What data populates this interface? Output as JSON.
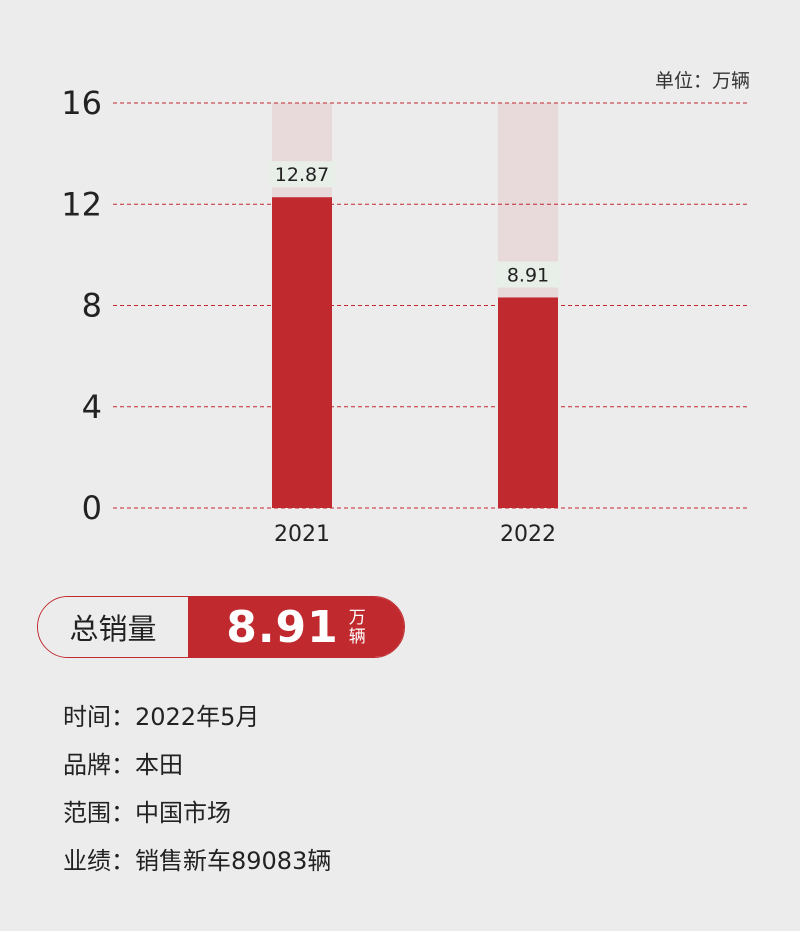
{
  "chart_data": {
    "type": "bar",
    "categories": [
      "2021",
      "2022"
    ],
    "values": [
      12.87,
      8.91
    ],
    "value_labels": [
      "12.87",
      "8.91"
    ],
    "yticks": [
      0,
      4,
      8,
      12,
      16
    ],
    "ylim": [
      0,
      16
    ],
    "unit_label": "单位：万辆",
    "grid": true,
    "colors": {
      "bar": "#c0292e",
      "bar_background": "#e8d9da",
      "label_background": "#e8efe9",
      "grid": "#c0292e"
    }
  },
  "summary": {
    "label": "总销量",
    "value": "8.91",
    "unit_top": "万",
    "unit_bottom": "辆"
  },
  "info": [
    {
      "key": "时间：",
      "value": "2022年5月"
    },
    {
      "key": "品牌：",
      "value": "本田"
    },
    {
      "key": "范围：",
      "value": "中国市场"
    },
    {
      "key": "业绩：",
      "value": "销售新车89083辆"
    }
  ]
}
